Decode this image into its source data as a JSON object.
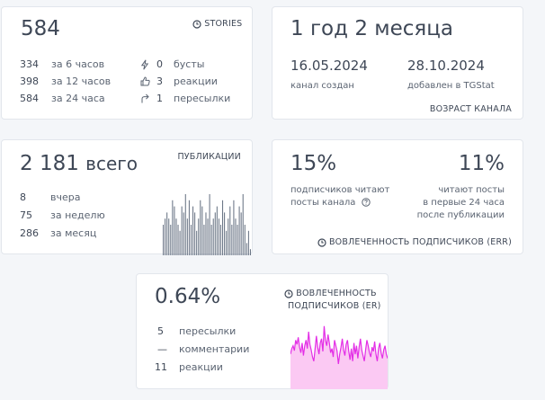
{
  "stories_card": {
    "value": "584",
    "tag": "STORIES",
    "left_rows": [
      {
        "num": "334",
        "label": "за 6 часов"
      },
      {
        "num": "398",
        "label": "за 12 часов"
      },
      {
        "num": "584",
        "label": "за 24 часа"
      }
    ],
    "right_rows": [
      {
        "icon": "lightning-icon",
        "num": "0",
        "label": "бусты"
      },
      {
        "icon": "thumbs-up-icon",
        "num": "3",
        "label": "реакции"
      },
      {
        "icon": "share-arrow-icon",
        "num": "1",
        "label": "пересылки"
      }
    ]
  },
  "age_card": {
    "value": "1 год 2 месяца",
    "created_date": "16.05.2024",
    "created_label": "канал создан",
    "added_date": "28.10.2024",
    "added_label": "добавлен в TGStat",
    "tag": "ВОЗРАСТ КАНАЛА"
  },
  "posts_card": {
    "value": "2 181",
    "value_suffix": "всего",
    "tag": "ПУБЛИКАЦИИ",
    "rows": [
      {
        "num": "8",
        "label": "вчера"
      },
      {
        "num": "75",
        "label": "за неделю"
      },
      {
        "num": "286",
        "label": "за месяц"
      }
    ],
    "bar_values": [
      5,
      6,
      7,
      6,
      5,
      9,
      8,
      6,
      5,
      4,
      8,
      7,
      10,
      6,
      9,
      5,
      8,
      7,
      4,
      6,
      9,
      8,
      5,
      7,
      6,
      10,
      5,
      6,
      7,
      8,
      6,
      5,
      9,
      7,
      4,
      6,
      8,
      5,
      9,
      6,
      5,
      8,
      7,
      10,
      5,
      2,
      4,
      1
    ],
    "bar_color": "#6b7686"
  },
  "err_card": {
    "left_value": "15%",
    "left_caption_1": "подписчиков читают",
    "left_caption_2": "посты канала",
    "right_value": "11%",
    "right_caption_1": "читают посты",
    "right_caption_2": "в первые 24 часа",
    "right_caption_3": "после публикации",
    "tag": "ВОВЛЕЧЕННОСТЬ ПОДПИСЧИКОВ (ERR)"
  },
  "er_card": {
    "value": "0.64%",
    "tag_line_1": "ВОВЛЕЧЕННОСТЬ",
    "tag_line_2": "ПОДПИСЧИКОВ (ER)",
    "rows": [
      {
        "num": "5",
        "label": "пересылки"
      },
      {
        "num": "—",
        "label": "комментарии"
      },
      {
        "num": "11",
        "label": "реакции"
      }
    ],
    "line_values": [
      0.5,
      0.58,
      0.62,
      0.55,
      0.7,
      0.64,
      0.74,
      0.6,
      0.52,
      0.66,
      0.48,
      0.62,
      0.7,
      0.58,
      0.82,
      0.64,
      0.56,
      0.46,
      0.4,
      0.58,
      0.76,
      0.6,
      0.5,
      0.66,
      0.72,
      0.54,
      0.9,
      0.7,
      0.62,
      0.78,
      0.66,
      0.52,
      0.58,
      0.46,
      0.7,
      0.62,
      0.54,
      0.36,
      0.5,
      0.6,
      0.72,
      0.56,
      0.48,
      0.64,
      0.7,
      0.54,
      0.42,
      0.58,
      0.4,
      0.66,
      0.5,
      0.62,
      0.44,
      0.6,
      0.72,
      0.56,
      0.48,
      0.4,
      0.56,
      0.7,
      0.62,
      0.52,
      0.46,
      0.6,
      0.54,
      0.68,
      0.5,
      0.4,
      0.58,
      0.66,
      0.52,
      0.44,
      0.56,
      0.62,
      0.5,
      0.44
    ],
    "line_color": "#e32ee6",
    "fill_color": "#fbc9f3"
  }
}
